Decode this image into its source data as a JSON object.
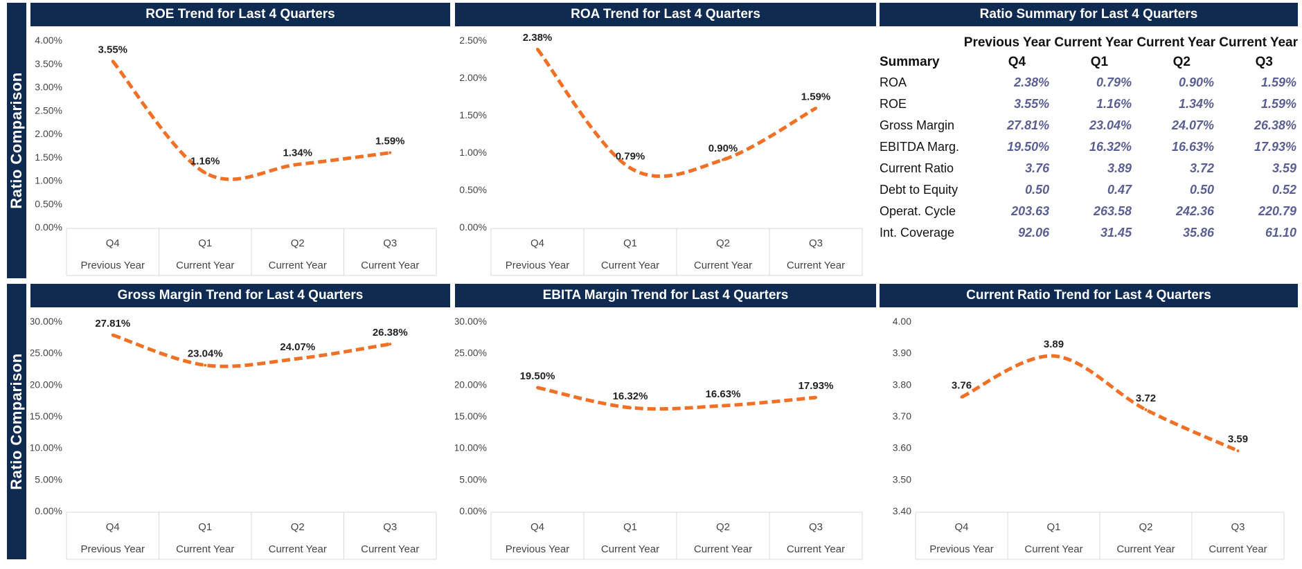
{
  "side_labels": [
    "Ratio Comparison",
    "Ratio Comparison"
  ],
  "colors": {
    "header": "#0f2b52",
    "line": "#f07025",
    "value": "#5a5f93"
  },
  "charts": [
    {
      "id": "roe",
      "title": "ROE Trend for Last 4 Quarters",
      "type": "line",
      "categories": [
        "Q4",
        "Q1",
        "Q2",
        "Q3"
      ],
      "category_groups": [
        "Previous Year",
        "Current Year",
        "Current Year",
        "Current Year"
      ],
      "values": [
        3.55,
        1.16,
        1.34,
        1.59
      ],
      "data_labels": [
        "3.55%",
        "1.16%",
        "1.34%",
        "1.59%"
      ],
      "y_ticks": [
        "0.00%",
        "0.50%",
        "1.00%",
        "1.50%",
        "2.00%",
        "2.50%",
        "3.00%",
        "3.50%",
        "4.00%"
      ],
      "ylim": [
        0,
        4
      ]
    },
    {
      "id": "roa",
      "title": "ROA Trend for Last 4 Quarters",
      "type": "line",
      "categories": [
        "Q4",
        "Q1",
        "Q2",
        "Q3"
      ],
      "category_groups": [
        "Previous Year",
        "Current Year",
        "Current Year",
        "Current Year"
      ],
      "values": [
        2.38,
        0.79,
        0.9,
        1.59
      ],
      "data_labels": [
        "2.38%",
        "0.79%",
        "0.90%",
        "1.59%"
      ],
      "y_ticks": [
        "0.00%",
        "0.50%",
        "1.00%",
        "1.50%",
        "2.00%",
        "2.50%"
      ],
      "ylim": [
        0,
        2.5
      ]
    },
    {
      "id": "gross",
      "title": "Gross Margin Trend for Last 4 Quarters",
      "type": "line",
      "categories": [
        "Q4",
        "Q1",
        "Q2",
        "Q3"
      ],
      "category_groups": [
        "Previous Year",
        "Current Year",
        "Current Year",
        "Current Year"
      ],
      "values": [
        27.81,
        23.04,
        24.07,
        26.38
      ],
      "data_labels": [
        "27.81%",
        "23.04%",
        "24.07%",
        "26.38%"
      ],
      "y_ticks": [
        "0.00%",
        "5.00%",
        "10.00%",
        "15.00%",
        "20.00%",
        "25.00%",
        "30.00%"
      ],
      "ylim": [
        0,
        30
      ]
    },
    {
      "id": "ebita",
      "title": "EBITA Margin Trend for Last 4 Quarters",
      "type": "line",
      "categories": [
        "Q4",
        "Q1",
        "Q2",
        "Q3"
      ],
      "category_groups": [
        "Previous Year",
        "Current Year",
        "Current Year",
        "Current Year"
      ],
      "values": [
        19.5,
        16.32,
        16.63,
        17.93
      ],
      "data_labels": [
        "19.50%",
        "16.32%",
        "16.63%",
        "17.93%"
      ],
      "y_ticks": [
        "0.00%",
        "5.00%",
        "10.00%",
        "15.00%",
        "20.00%",
        "25.00%",
        "30.00%"
      ],
      "ylim": [
        0,
        30
      ]
    },
    {
      "id": "current",
      "title": "Current Ratio Trend for Last 4 Quarters",
      "type": "line",
      "categories": [
        "Q4",
        "Q1",
        "Q2",
        "Q3"
      ],
      "category_groups": [
        "Previous Year",
        "Current Year",
        "Current Year",
        "Current Year"
      ],
      "values": [
        3.76,
        3.89,
        3.72,
        3.59
      ],
      "data_labels": [
        "3.76",
        "3.89",
        "3.72",
        "3.59"
      ],
      "y_ticks": [
        "3.40",
        "3.50",
        "3.60",
        "3.70",
        "3.80",
        "3.90",
        "4.00"
      ],
      "ylim": [
        3.4,
        4.0
      ]
    }
  ],
  "summary": {
    "title": "Ratio Summary for Last 4 Quarters",
    "corner_label": "Summary",
    "columns": [
      {
        "top": "Previous Year",
        "bottom": "Q4"
      },
      {
        "top": "Current Year",
        "bottom": "Q1"
      },
      {
        "top": "Current Year",
        "bottom": "Q2"
      },
      {
        "top": "Current Year",
        "bottom": "Q3"
      }
    ],
    "rows": [
      {
        "label": "ROA",
        "values": [
          "2.38%",
          "0.79%",
          "0.90%",
          "1.59%"
        ]
      },
      {
        "label": "ROE",
        "values": [
          "3.55%",
          "1.16%",
          "1.34%",
          "1.59%"
        ]
      },
      {
        "label": "Gross Margin",
        "values": [
          "27.81%",
          "23.04%",
          "24.07%",
          "26.38%"
        ]
      },
      {
        "label": "EBITDA Marg.",
        "values": [
          "19.50%",
          "16.32%",
          "16.63%",
          "17.93%"
        ]
      },
      {
        "label": "Current Ratio",
        "values": [
          "3.76",
          "3.89",
          "3.72",
          "3.59"
        ]
      },
      {
        "label": "Debt to Equity",
        "values": [
          "0.50",
          "0.47",
          "0.50",
          "0.52"
        ]
      },
      {
        "label": "Operat. Cycle",
        "values": [
          "203.63",
          "263.58",
          "242.36",
          "220.79"
        ]
      },
      {
        "label": "Int. Coverage",
        "values": [
          "92.06",
          "31.45",
          "35.86",
          "61.10"
        ]
      }
    ]
  },
  "chart_data": [
    {
      "type": "line",
      "title": "ROE Trend for Last 4 Quarters",
      "categories": [
        "Q4",
        "Q1",
        "Q2",
        "Q3"
      ],
      "values": [
        3.55,
        1.16,
        1.34,
        1.59
      ],
      "ylim": [
        0,
        4
      ]
    },
    {
      "type": "line",
      "title": "ROA Trend for Last 4 Quarters",
      "categories": [
        "Q4",
        "Q1",
        "Q2",
        "Q3"
      ],
      "values": [
        2.38,
        0.79,
        0.9,
        1.59
      ],
      "ylim": [
        0,
        2.5
      ]
    },
    {
      "type": "line",
      "title": "Gross Margin Trend for Last 4 Quarters",
      "categories": [
        "Q4",
        "Q1",
        "Q2",
        "Q3"
      ],
      "values": [
        27.81,
        23.04,
        24.07,
        26.38
      ],
      "ylim": [
        0,
        30
      ]
    },
    {
      "type": "line",
      "title": "EBITA Margin Trend for Last 4 Quarters",
      "categories": [
        "Q4",
        "Q1",
        "Q2",
        "Q3"
      ],
      "values": [
        19.5,
        16.32,
        16.63,
        17.93
      ],
      "ylim": [
        0,
        30
      ]
    },
    {
      "type": "line",
      "title": "Current Ratio Trend for Last 4 Quarters",
      "categories": [
        "Q4",
        "Q1",
        "Q2",
        "Q3"
      ],
      "values": [
        3.76,
        3.89,
        3.72,
        3.59
      ],
      "ylim": [
        3.4,
        4.0
      ]
    },
    {
      "type": "table",
      "title": "Ratio Summary for Last 4 Quarters",
      "columns": [
        "Q4",
        "Q1",
        "Q2",
        "Q3"
      ],
      "rows": [
        {
          "label": "ROA",
          "values": [
            2.38,
            0.79,
            0.9,
            1.59
          ]
        },
        {
          "label": "ROE",
          "values": [
            3.55,
            1.16,
            1.34,
            1.59
          ]
        },
        {
          "label": "Gross Margin",
          "values": [
            27.81,
            23.04,
            24.07,
            26.38
          ]
        },
        {
          "label": "EBITDA Marg.",
          "values": [
            19.5,
            16.32,
            16.63,
            17.93
          ]
        },
        {
          "label": "Current Ratio",
          "values": [
            3.76,
            3.89,
            3.72,
            3.59
          ]
        },
        {
          "label": "Debt to Equity",
          "values": [
            0.5,
            0.47,
            0.5,
            0.52
          ]
        },
        {
          "label": "Operat. Cycle",
          "values": [
            203.63,
            263.58,
            242.36,
            220.79
          ]
        },
        {
          "label": "Int. Coverage",
          "values": [
            92.06,
            31.45,
            35.86,
            61.1
          ]
        }
      ]
    }
  ]
}
